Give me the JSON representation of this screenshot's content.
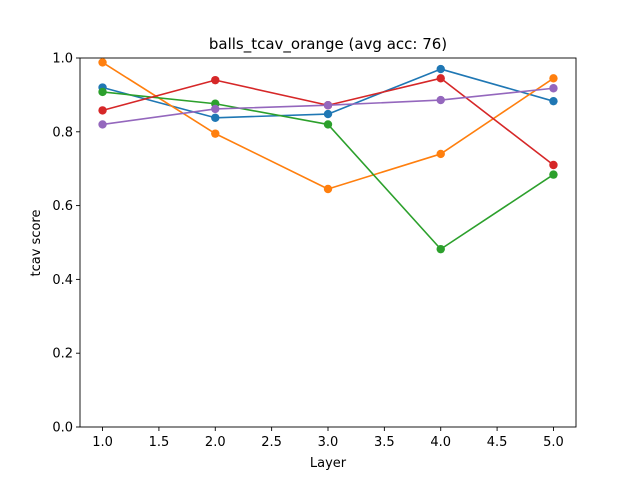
{
  "chart_data": {
    "type": "line",
    "title": "balls_tcav_orange (avg acc: 76)",
    "xlabel": "Layer",
    "ylabel": "tcav score",
    "x": [
      1.0,
      2.0,
      3.0,
      4.0,
      5.0
    ],
    "xlim": [
      0.8,
      5.2
    ],
    "ylim": [
      0.0,
      1.0
    ],
    "xticks": [
      "1.0",
      "1.5",
      "2.0",
      "2.5",
      "3.0",
      "3.5",
      "4.0",
      "4.5",
      "5.0"
    ],
    "yticks": [
      "0.0",
      "0.2",
      "0.4",
      "0.6",
      "0.8",
      "1.0"
    ],
    "grid": false,
    "series": [
      {
        "color": "#1f77b4",
        "values": [
          0.92,
          0.838,
          0.848,
          0.97,
          0.883
        ]
      },
      {
        "color": "#ff7f0e",
        "values": [
          0.988,
          0.795,
          0.645,
          0.74,
          0.945
        ]
      },
      {
        "color": "#2ca02c",
        "values": [
          0.908,
          0.876,
          0.82,
          0.482,
          0.684
        ]
      },
      {
        "color": "#d62728",
        "values": [
          0.858,
          0.94,
          0.872,
          0.945,
          0.71
        ]
      },
      {
        "color": "#9467bd",
        "values": [
          0.82,
          0.862,
          0.872,
          0.886,
          0.918
        ]
      }
    ]
  }
}
